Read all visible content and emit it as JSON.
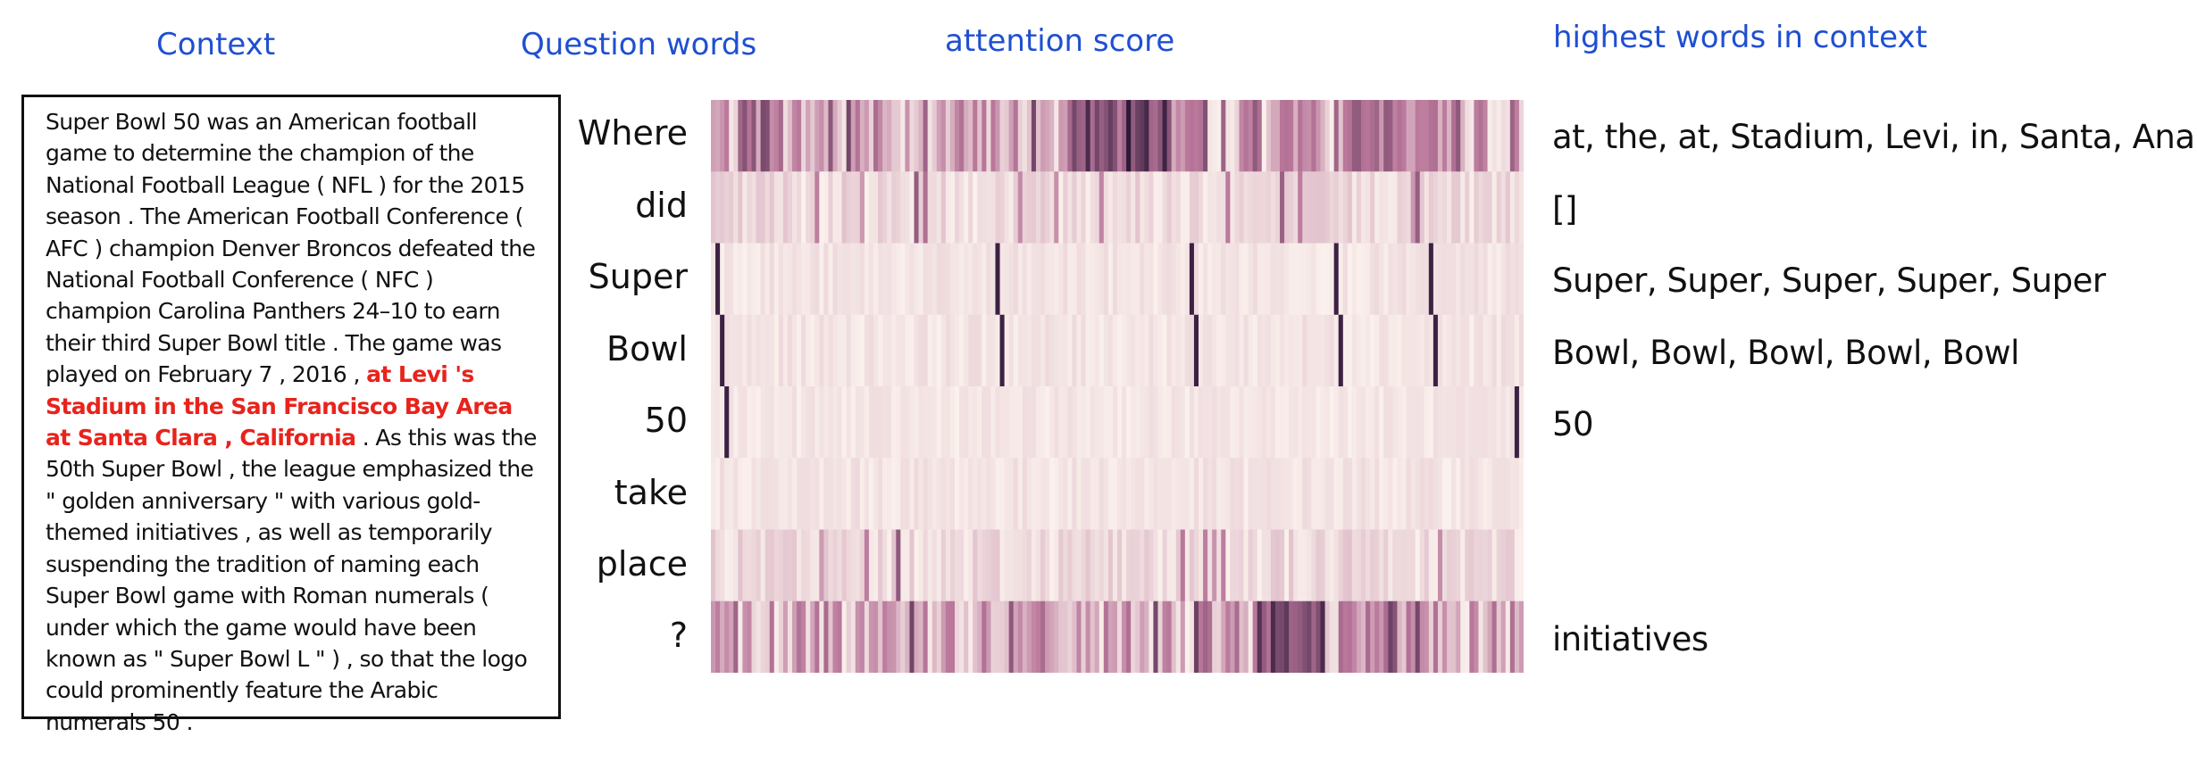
{
  "headers": {
    "context": "Context",
    "question_words": "Question words",
    "attention_score": "attention score",
    "highest_words": "highest words in context"
  },
  "context": {
    "before": "Super Bowl 50 was an American football game to determine the champion of the National Football League ( NFL ) for the 2015 season . The American Football Conference ( AFC ) champion Denver Broncos defeated the National Football Conference ( NFC ) champion Carolina Panthers 24–10 to earn their third Super Bowl title . The game was played on February 7 , 2016 , ",
    "answer": "at Levi 's Stadium in the San Francisco Bay Area at Santa Clara , California",
    "after": " . As this was the 50th Super Bowl , the league emphasized the \" golden anniversary \" with various gold-themed initiatives , as well as temporarily suspending the tradition of naming each Super Bowl game with Roman numerals ( under which the game would have been known as \" Super Bowl L \" ) , so that the logo could prominently feature the Arabic numerals 50 ."
  },
  "rows": [
    {
      "word": "Where",
      "highest": "at, the, at, Stadium, Levi, in, Santa, Ana"
    },
    {
      "word": "did",
      "highest": "[]"
    },
    {
      "word": "Super",
      "highest": "Super, Super, Super, Super, Super"
    },
    {
      "word": "Bowl",
      "highest": "Bowl, Bowl, Bowl, Bowl, Bowl"
    },
    {
      "word": "50",
      "highest": "50"
    },
    {
      "word": "take",
      "highest": ""
    },
    {
      "word": "place",
      "highest": ""
    },
    {
      "word": "?",
      "highest": "initiatives"
    }
  ],
  "palette": {
    "low": "#faf0ec",
    "mid": "#b9779a",
    "high": "#2d1738",
    "accent": "#1f4fd1",
    "answer": "#e8231c"
  }
}
